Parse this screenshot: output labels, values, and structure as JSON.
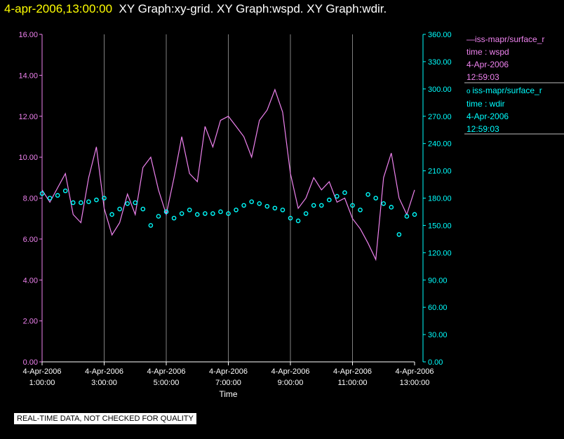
{
  "header": {
    "timestamp": "4-apr-2006,13:00:00",
    "graphs": "XY Graph:xy-grid.  XY Graph:wspd.  XY Graph:wdir."
  },
  "notice": "REAL-TIME DATA, NOT CHECKED FOR QUALITY",
  "colors": {
    "wspd": "#ee82ee",
    "wdir": "#00ffff",
    "grid": "#808080",
    "background": "#000000",
    "title_time": "#ffff00"
  },
  "legend": [
    {
      "marker": "line",
      "name": "iss-mapr/surface_r",
      "line2": "time : wspd",
      "line3": "4-Apr-2006",
      "line4": "12:59:03"
    },
    {
      "marker": "circle",
      "name": "iss-mapr/surface_r",
      "line2": "time : wdir",
      "line3": "4-Apr-2006",
      "line4": "12:59:03"
    }
  ],
  "chart_data": {
    "type": "line",
    "xlabel": "Time",
    "x_ticks": [
      {
        "date": "4-Apr-2006",
        "time": "1:00:00"
      },
      {
        "date": "4-Apr-2006",
        "time": "3:00:00"
      },
      {
        "date": "4-Apr-2006",
        "time": "5:00:00"
      },
      {
        "date": "4-Apr-2006",
        "time": "7:00:00"
      },
      {
        "date": "4-Apr-2006",
        "time": "9:00:00"
      },
      {
        "date": "4-Apr-2006",
        "time": "11:00:00"
      },
      {
        "date": "4-Apr-2006",
        "time": "13:00:00"
      }
    ],
    "xlim": [
      "4-Apr-2006 1:00:00",
      "4-Apr-2006 13:00:00"
    ],
    "y_left": {
      "lim": [
        0,
        16
      ],
      "ticks": [
        "0.00",
        "2.00",
        "4.00",
        "6.00",
        "8.00",
        "10.00",
        "12.00",
        "14.00",
        "16.00"
      ]
    },
    "y_right": {
      "lim": [
        0,
        360
      ],
      "ticks": [
        "0.00",
        "30.00",
        "60.00",
        "90.00",
        "120.00",
        "150.00",
        "180.00",
        "210.00",
        "240.00",
        "270.00",
        "300.00",
        "330.00",
        "360.00"
      ]
    },
    "grid": "vertical",
    "series": [
      {
        "key": "wspd",
        "axis": "left",
        "style": "line",
        "x": [
          "1:00",
          "1:15",
          "1:30",
          "1:45",
          "2:00",
          "2:15",
          "2:30",
          "2:45",
          "3:00",
          "3:15",
          "3:30",
          "3:45",
          "4:00",
          "4:15",
          "4:30",
          "4:45",
          "5:00",
          "5:15",
          "5:30",
          "5:45",
          "6:00",
          "6:15",
          "6:30",
          "6:45",
          "7:00",
          "7:15",
          "7:30",
          "7:45",
          "8:00",
          "8:15",
          "8:30",
          "8:45",
          "9:00",
          "9:15",
          "9:30",
          "9:45",
          "10:00",
          "10:15",
          "10:30",
          "10:45",
          "11:00",
          "11:15",
          "11:30",
          "11:45",
          "12:00",
          "12:15",
          "12:30",
          "12:45",
          "13:00"
        ],
        "values": [
          8.4,
          7.8,
          8.5,
          9.2,
          7.2,
          6.8,
          9.0,
          10.5,
          7.5,
          6.2,
          6.8,
          8.2,
          7.2,
          9.5,
          10.0,
          8.4,
          7.2,
          9.0,
          11.0,
          9.2,
          8.8,
          11.5,
          10.5,
          11.8,
          12.0,
          11.5,
          11.0,
          10.0,
          11.8,
          12.3,
          13.3,
          12.2,
          9.2,
          7.5,
          8.0,
          9.0,
          8.4,
          8.8,
          7.8,
          8.0,
          7.0,
          6.5,
          5.8,
          5.0,
          9.0,
          10.2,
          8.0,
          7.2,
          8.4
        ]
      },
      {
        "key": "wdir",
        "axis": "right",
        "style": "circles",
        "x": [
          "1:00",
          "1:15",
          "1:30",
          "1:45",
          "2:00",
          "2:15",
          "2:30",
          "2:45",
          "3:00",
          "3:15",
          "3:30",
          "3:45",
          "4:00",
          "4:15",
          "4:30",
          "4:45",
          "5:00",
          "5:15",
          "5:30",
          "5:45",
          "6:00",
          "6:15",
          "6:30",
          "6:45",
          "7:00",
          "7:15",
          "7:30",
          "7:45",
          "8:00",
          "8:15",
          "8:30",
          "8:45",
          "9:00",
          "9:15",
          "9:30",
          "9:45",
          "10:00",
          "10:15",
          "10:30",
          "10:45",
          "11:00",
          "11:15",
          "11:30",
          "11:45",
          "12:00",
          "12:15",
          "12:30",
          "12:45",
          "13:00"
        ],
        "values": [
          185,
          180,
          183,
          188,
          175,
          175,
          176,
          178,
          180,
          162,
          168,
          174,
          175,
          168,
          150,
          160,
          165,
          158,
          163,
          167,
          162,
          163,
          163,
          165,
          163,
          167,
          172,
          176,
          174,
          171,
          169,
          167,
          158,
          155,
          163,
          172,
          172,
          178,
          182,
          186,
          172,
          167,
          184,
          180,
          174,
          170,
          140,
          160,
          162
        ]
      }
    ]
  }
}
